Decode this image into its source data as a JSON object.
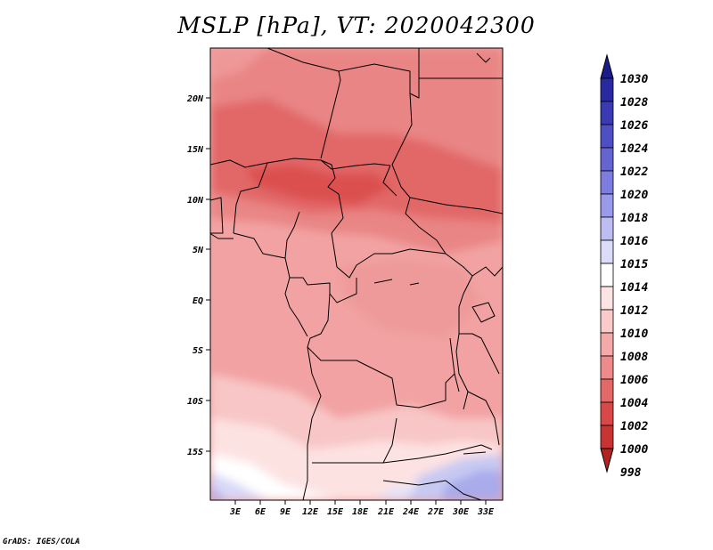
{
  "title": "MSLP [hPa], VT: 2020042300",
  "credit": "GrADS: IGES/COLA",
  "map": {
    "lat_labels": [
      "20N",
      "15N",
      "10N",
      "5N",
      "EQ",
      "5S",
      "10S",
      "15S"
    ],
    "lon_labels": [
      "3E",
      "6E",
      "9E",
      "12E",
      "15E",
      "18E",
      "21E",
      "24E",
      "27E",
      "30E",
      "33E"
    ]
  },
  "colorbar": {
    "labels": [
      "1030",
      "1028",
      "1026",
      "1024",
      "1022",
      "1020",
      "1018",
      "1016",
      "1015",
      "1014",
      "1012",
      "1010",
      "1008",
      "1006",
      "1004",
      "1002",
      "1000",
      "998"
    ],
    "colors": [
      "#1b1b8a",
      "#2a2aa0",
      "#3a3ab2",
      "#4f4fc4",
      "#6565d2",
      "#7d7de0",
      "#9a9aea",
      "#bdbdf2",
      "#dcdcf8",
      "#ffffff",
      "#fde4e4",
      "#fbcaca",
      "#f5aaaa",
      "#ed8a8a",
      "#e46868",
      "#d84848",
      "#c83434",
      "#b42222"
    ]
  },
  "colors": {
    "land_edge": "#000000",
    "low_pressure": "#e65050",
    "high_pressure": "#aeb0ee"
  }
}
